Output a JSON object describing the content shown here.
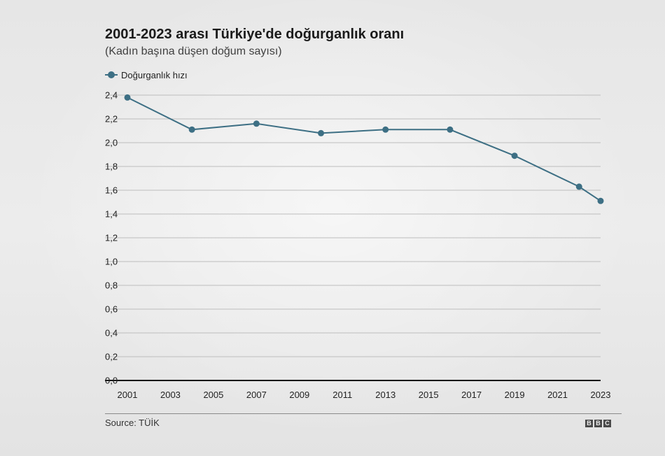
{
  "header": {
    "title": "2001-2023 arası Türkiye'de doğurganlık oranı",
    "subtitle": "(Kadın başına düşen doğum sayısı)"
  },
  "legend": {
    "label": "Doğurganlık hızı"
  },
  "footer": {
    "source": "Source: TÜİK",
    "logo_letters": [
      "B",
      "B",
      "C"
    ]
  },
  "colors": {
    "series": "#3d6f84",
    "grid": "#bdbdbd",
    "axis": "#111111"
  },
  "chart_data": {
    "type": "line",
    "title": "2001-2023 arası Türkiye'de doğurganlık oranı",
    "subtitle": "(Kadın başına düşen doğum sayısı)",
    "xlabel": "",
    "ylabel": "",
    "xlim": [
      2001,
      2023
    ],
    "ylim": [
      0,
      2.4
    ],
    "grid": true,
    "legend_position": "top-left",
    "x_ticks": [
      "2001",
      "2003",
      "2005",
      "2007",
      "2009",
      "2011",
      "2013",
      "2015",
      "2017",
      "2019",
      "2021",
      "2023"
    ],
    "y_ticks": [
      "0,0",
      "0,2",
      "0,4",
      "0,6",
      "0,8",
      "1,0",
      "1,2",
      "1,4",
      "1,6",
      "1,8",
      "2,0",
      "2,2",
      "2,4"
    ],
    "series": [
      {
        "name": "Doğurganlık hızı",
        "x": [
          2001,
          2004,
          2007,
          2010,
          2013,
          2016,
          2019,
          2022,
          2023
        ],
        "values": [
          2.38,
          2.11,
          2.16,
          2.08,
          2.11,
          2.11,
          1.89,
          1.63,
          1.51
        ]
      }
    ]
  }
}
